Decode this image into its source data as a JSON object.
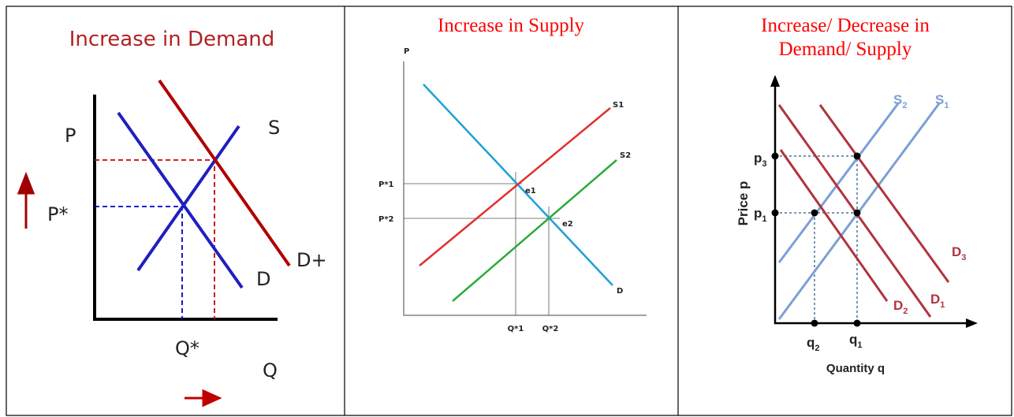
{
  "panels": [
    {
      "title": "Increase in Demand",
      "labels": {
        "p": "P",
        "p_star": "P*",
        "s": "S",
        "d_plus": "D+",
        "d": "D",
        "q_star": "Q*",
        "q": "Q"
      }
    },
    {
      "title": "Increase in Supply",
      "labels": {
        "p": "P",
        "s1": "S1",
        "s2": "S2",
        "p1": "P*1",
        "p2": "P*2",
        "e1": "e1",
        "e2": "e2",
        "d": "D",
        "q1": "Q*1",
        "q2": "Q*2"
      }
    },
    {
      "title_lines": [
        "Increase/ Decrease in",
        "Demand/ Supply"
      ],
      "labels": {
        "s2": {
          "base": "S",
          "sub": "2"
        },
        "s1": {
          "base": "S",
          "sub": "1"
        },
        "p3": {
          "base": "p",
          "sub": "3"
        },
        "p1": {
          "base": "p",
          "sub": "1"
        },
        "y_axis": "Price p",
        "d3": {
          "base": "D",
          "sub": "3"
        },
        "d2": {
          "base": "D",
          "sub": "2"
        },
        "d1": {
          "base": "D",
          "sub": "1"
        },
        "q2": {
          "base": "q",
          "sub": "2"
        },
        "q1": {
          "base": "q",
          "sub": "1"
        },
        "x_axis": "Quantity q"
      }
    }
  ]
}
